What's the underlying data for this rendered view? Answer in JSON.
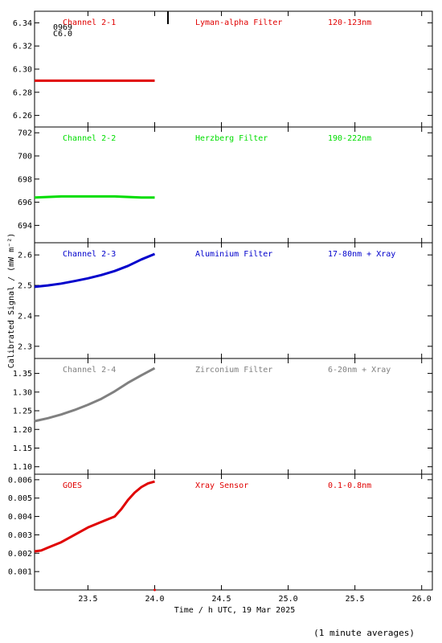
{
  "footer_note": "(1 minute averages)",
  "chart_data": {
    "type": "line",
    "ylabel": "Calibrated Signal / (mW m⁻²)",
    "xlabel": "Time / h UTC, 19 Mar 2025",
    "xlim": [
      23.1,
      26.08
    ],
    "x_ticks": [
      23.5,
      24.0,
      24.5,
      25.0,
      25.5,
      26.0
    ],
    "x_tick_labels": [
      "23.5",
      "24.0",
      "24.5",
      "25.0",
      "25.5",
      "26.0"
    ],
    "annotation_top": [
      "0969",
      "C6.0"
    ],
    "panels": [
      {
        "name": "Channel 2-1",
        "filter": "Lyman-alpha Filter",
        "band": "120-123nm",
        "color": "#e00000",
        "ylim": [
          6.25,
          6.35
        ],
        "y_ticks": [
          6.26,
          6.28,
          6.3,
          6.32,
          6.34
        ],
        "y_tick_labels": [
          "6.26",
          "6.28",
          "6.30",
          "6.32",
          "6.34"
        ],
        "x": [
          23.1,
          23.3,
          23.5,
          23.7,
          23.9,
          24.0
        ],
        "values": [
          6.29,
          6.29,
          6.29,
          6.29,
          6.29,
          6.29
        ]
      },
      {
        "name": "Channel 2-2",
        "filter": "Herzberg Filter",
        "band": "190-222nm",
        "color": "#00dd00",
        "ylim": [
          692.5,
          702.5
        ],
        "y_ticks": [
          694,
          696,
          698,
          700,
          702
        ],
        "y_tick_labels": [
          "694",
          "696",
          "698",
          "700",
          "702"
        ],
        "x": [
          23.1,
          23.3,
          23.5,
          23.7,
          23.9,
          24.0
        ],
        "values": [
          696.4,
          696.5,
          696.5,
          696.5,
          696.4,
          696.4
        ]
      },
      {
        "name": "Channel 2-3",
        "filter": "Aluminium Filter",
        "band": "17-80nm + Xray",
        "color": "#0000cc",
        "ylim": [
          2.26,
          2.64
        ],
        "y_ticks": [
          2.3,
          2.4,
          2.5,
          2.6
        ],
        "y_tick_labels": [
          "2.3",
          "2.4",
          "2.5",
          "2.6"
        ],
        "x": [
          23.1,
          23.2,
          23.3,
          23.4,
          23.5,
          23.6,
          23.7,
          23.8,
          23.9,
          24.0
        ],
        "values": [
          2.495,
          2.5,
          2.506,
          2.514,
          2.523,
          2.534,
          2.547,
          2.564,
          2.585,
          2.603
        ]
      },
      {
        "name": "Channel 2-4",
        "filter": "Zirconium Filter",
        "band": "6-20nm + Xray",
        "color": "#808080",
        "ylim": [
          1.08,
          1.39
        ],
        "y_ticks": [
          1.1,
          1.15,
          1.2,
          1.25,
          1.3,
          1.35
        ],
        "y_tick_labels": [
          "1.10",
          "1.15",
          "1.20",
          "1.25",
          "1.30",
          "1.35"
        ],
        "x": [
          23.1,
          23.2,
          23.3,
          23.4,
          23.5,
          23.6,
          23.7,
          23.8,
          23.9,
          24.0
        ],
        "values": [
          1.222,
          1.23,
          1.24,
          1.252,
          1.266,
          1.282,
          1.302,
          1.325,
          1.345,
          1.364
        ]
      },
      {
        "name": "GOES",
        "filter": "Xray Sensor",
        "band": "0.1-0.8nm",
        "color": "#e00000",
        "ylim": [
          0.0,
          0.0063
        ],
        "y_ticks": [
          0.001,
          0.002,
          0.003,
          0.004,
          0.005,
          0.006
        ],
        "y_tick_labels": [
          "0.001",
          "0.002",
          "0.003",
          "0.004",
          "0.005",
          "0.006"
        ],
        "x": [
          23.1,
          23.15,
          23.2,
          23.3,
          23.4,
          23.5,
          23.6,
          23.7,
          23.75,
          23.8,
          23.85,
          23.9,
          23.95,
          24.0
        ],
        "values": [
          0.0021,
          0.00215,
          0.0023,
          0.0026,
          0.003,
          0.0034,
          0.0037,
          0.004,
          0.0044,
          0.0049,
          0.0053,
          0.0056,
          0.0058,
          0.0059
        ]
      }
    ]
  }
}
